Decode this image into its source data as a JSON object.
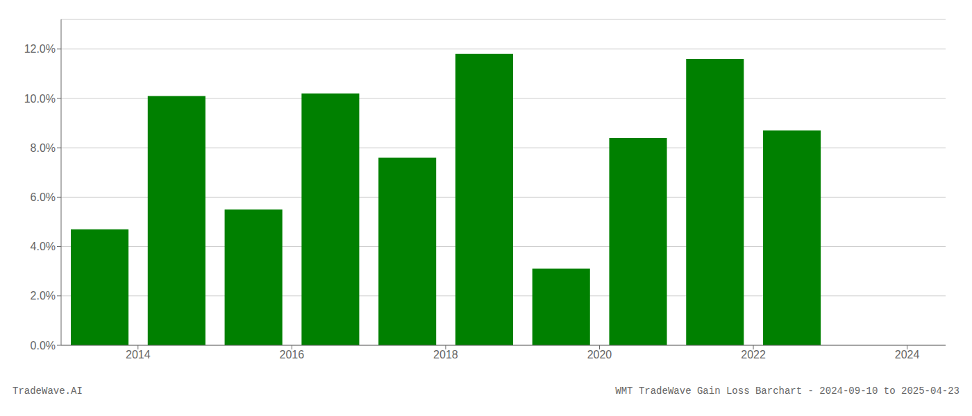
{
  "chart_data": {
    "type": "bar",
    "x": [
      2013.5,
      2014.5,
      2015.5,
      2016.5,
      2017.5,
      2018.5,
      2019.5,
      2020.5,
      2021.5,
      2022.5
    ],
    "values": [
      0.047,
      0.101,
      0.055,
      0.102,
      0.076,
      0.118,
      0.031,
      0.084,
      0.116,
      0.087
    ],
    "color": "#008000",
    "xlim": [
      2013.0,
      2024.5
    ],
    "xticks": [
      2014,
      2016,
      2018,
      2020,
      2022,
      2024
    ],
    "ylim": [
      0,
      0.132
    ],
    "yticks": [
      {
        "value": 0,
        "label": "0.0%"
      },
      {
        "value": 0.02,
        "label": "2.0%"
      },
      {
        "value": 0.04,
        "label": "4.0%"
      },
      {
        "value": 0.06,
        "label": "6.0%"
      },
      {
        "value": 0.08,
        "label": "8.0%"
      },
      {
        "value": 0.1,
        "label": "10.0%"
      },
      {
        "value": 0.12,
        "label": "12.0%"
      }
    ],
    "grid": true,
    "annotations": [
      "TradeWave.AI",
      "WMT TradeWave Gain Loss Barchart - 2024-09-10 to 2025-04-23"
    ]
  }
}
